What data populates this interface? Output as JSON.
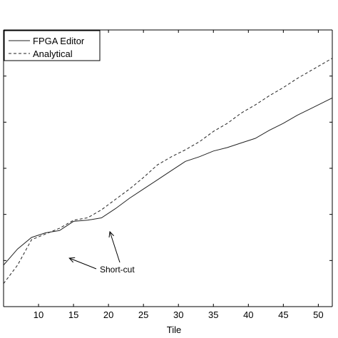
{
  "chart_data": {
    "type": "line",
    "title": "",
    "xlabel": "Tile",
    "ylabel": "",
    "xlim": [
      5,
      52
    ],
    "x_ticks": [
      10,
      15,
      20,
      25,
      30,
      35,
      40,
      45,
      50
    ],
    "grid": false,
    "legend_position": "top-left",
    "series": [
      {
        "name": "FPGA Editor",
        "style": "solid",
        "color": "#222222",
        "x": [
          5,
          7,
          9,
          11,
          13,
          15,
          17,
          19,
          21,
          23,
          25,
          27,
          29,
          31,
          33,
          35,
          37,
          39,
          41,
          43,
          45,
          47,
          49,
          51,
          53
        ],
        "y": [
          18,
          25,
          30,
          32,
          33,
          37,
          37.5,
          38.5,
          42.5,
          47,
          51,
          55,
          59,
          63,
          65,
          67.5,
          69,
          71,
          73,
          76.5,
          79.5,
          83,
          86,
          89,
          92
        ]
      },
      {
        "name": "Analytical",
        "style": "dashed",
        "color": "#222222",
        "x": [
          5,
          7,
          9,
          11,
          13,
          15,
          17,
          19,
          21,
          23,
          25,
          27,
          29,
          31,
          33,
          35,
          37,
          39,
          41,
          43,
          45,
          47,
          49,
          51,
          53
        ],
        "y": [
          10,
          18,
          29,
          31.5,
          34,
          37.5,
          38.5,
          42,
          46.5,
          51,
          56,
          61.5,
          65,
          68,
          71.5,
          76,
          79.5,
          84,
          87.5,
          91.5,
          95,
          99,
          102.5,
          106,
          109.5
        ]
      }
    ],
    "annotations": [
      {
        "text": "Short-cut",
        "arrows_to_x": [
          14,
          20
        ]
      }
    ]
  }
}
